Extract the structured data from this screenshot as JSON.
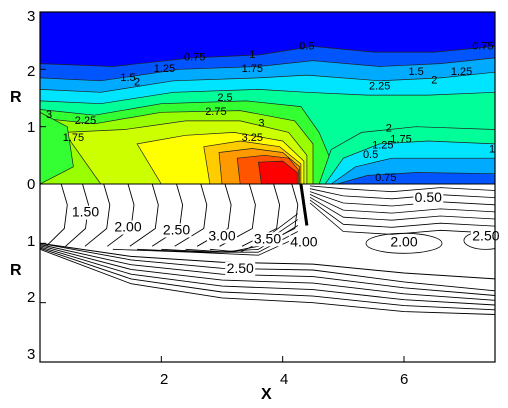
{
  "chart_data": {
    "type": "contour",
    "title": "",
    "xlabel": "X",
    "ylabel": "R",
    "xlim": [
      0,
      7.5
    ],
    "ylim_top": [
      0,
      3
    ],
    "ylim_bottom": [
      0,
      3
    ],
    "x_ticks": [
      "2",
      "4",
      "6"
    ],
    "y_ticks_top": [
      "0",
      "1",
      "2",
      "3"
    ],
    "y_ticks_bottom": [
      "1",
      "2",
      "3"
    ],
    "colormap": [
      "#0000ff",
      "#0055ff",
      "#00aaff",
      "#00e5ff",
      "#00ff99",
      "#33ff33",
      "#99ff00",
      "#ccff00",
      "#ffff00",
      "#ffcc00",
      "#ff9900",
      "#ff5500",
      "#ff0000"
    ],
    "panels": [
      {
        "name": "upper",
        "style": "filled",
        "labels": [
          {
            "x": 0.15,
            "y": 1.15,
            "text": "3"
          },
          {
            "x": 0.75,
            "y": 1.05,
            "text": "2.25"
          },
          {
            "x": 0.55,
            "y": 0.75,
            "text": "1.75"
          },
          {
            "x": 1.45,
            "y": 1.8,
            "text": "1.5"
          },
          {
            "x": 1.6,
            "y": 1.72,
            "text": "2"
          },
          {
            "x": 2.05,
            "y": 1.95,
            "text": "1.25"
          },
          {
            "x": 2.55,
            "y": 2.15,
            "text": "0.75"
          },
          {
            "x": 3.5,
            "y": 2.2,
            "text": "1"
          },
          {
            "x": 3.5,
            "y": 1.95,
            "text": "1.75"
          },
          {
            "x": 4.4,
            "y": 2.35,
            "text": "0.5"
          },
          {
            "x": 3.05,
            "y": 1.45,
            "text": "2.5"
          },
          {
            "x": 2.9,
            "y": 1.2,
            "text": "2.75"
          },
          {
            "x": 3.65,
            "y": 1.0,
            "text": "3"
          },
          {
            "x": 3.5,
            "y": 0.75,
            "text": "3.25"
          },
          {
            "x": 5.6,
            "y": 1.65,
            "text": "2.25"
          },
          {
            "x": 6.2,
            "y": 1.9,
            "text": "1.5"
          },
          {
            "x": 6.5,
            "y": 1.75,
            "text": "2"
          },
          {
            "x": 6.95,
            "y": 1.9,
            "text": "1.25"
          },
          {
            "x": 7.3,
            "y": 2.35,
            "text": "0.75"
          },
          {
            "x": 5.75,
            "y": 0.92,
            "text": "2"
          },
          {
            "x": 5.95,
            "y": 0.72,
            "text": "1.75"
          },
          {
            "x": 5.65,
            "y": 0.62,
            "text": "1.25"
          },
          {
            "x": 5.45,
            "y": 0.45,
            "text": "0.5"
          },
          {
            "x": 5.7,
            "y": 0.05,
            "text": "0.75"
          },
          {
            "x": 7.45,
            "y": 0.55,
            "text": "1"
          }
        ]
      },
      {
        "name": "lower",
        "style": "lines",
        "labels": [
          {
            "x": 0.75,
            "y": 0.55,
            "text": "1.50"
          },
          {
            "x": 1.45,
            "y": 0.8,
            "text": "2.00"
          },
          {
            "x": 2.25,
            "y": 0.85,
            "text": "2.50"
          },
          {
            "x": 3.0,
            "y": 0.95,
            "text": "3.00"
          },
          {
            "x": 3.75,
            "y": 1.0,
            "text": "3.50"
          },
          {
            "x": 4.35,
            "y": 1.05,
            "text": "4.00"
          },
          {
            "x": 3.3,
            "y": 1.5,
            "text": "2.50"
          },
          {
            "x": 6.4,
            "y": 0.3,
            "text": "0.50"
          },
          {
            "x": 6.0,
            "y": 1.05,
            "text": "2.00"
          },
          {
            "x": 7.35,
            "y": 0.95,
            "text": "2.50"
          }
        ]
      }
    ]
  }
}
